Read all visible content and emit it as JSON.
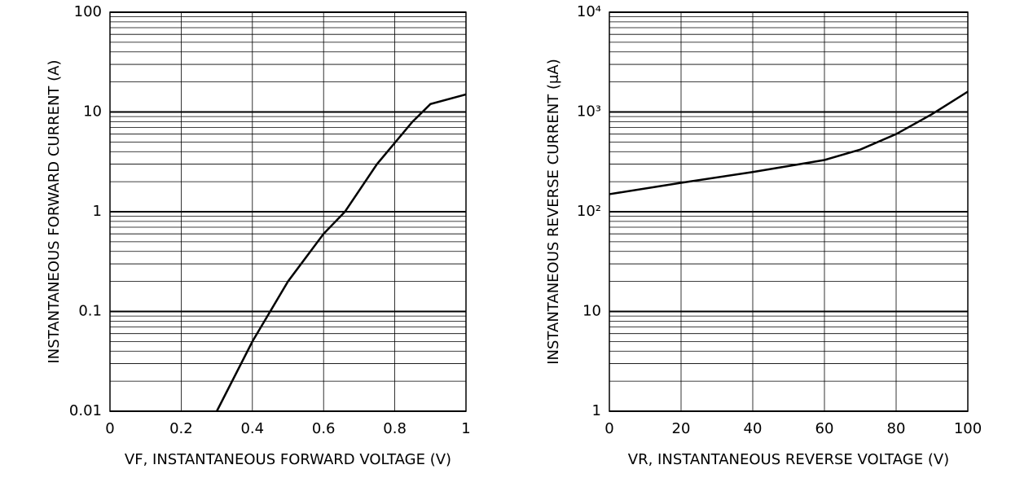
{
  "chart_data": [
    {
      "type": "line",
      "y_label": "INSTANTANEOUS FORWARD CURRENT (A)",
      "x_label": "VF, INSTANTANEOUS FORWARD VOLTAGE (V)",
      "x": [
        0.3,
        0.4,
        0.5,
        0.6,
        0.66,
        0.75,
        0.85,
        0.9,
        1.0
      ],
      "values": [
        0.01,
        0.05,
        0.2,
        0.6,
        1,
        3,
        8,
        12,
        15
      ],
      "color": "#000000",
      "xlim": [
        0,
        1
      ],
      "xticks": [
        0,
        0.2,
        0.4,
        0.6,
        0.8,
        1
      ],
      "ylim": [
        0.01,
        100
      ],
      "yticks": [
        0.01,
        0.1,
        1,
        10,
        100
      ],
      "log_y": true,
      "grid": true
    },
    {
      "type": "line",
      "y_label": "INSTANTANEOUS REVERSE CURRENT (μA)",
      "x_label": "VR, INSTANTANEOUS REVERSE VOLTAGE (V)",
      "x": [
        0,
        20,
        40,
        60,
        70,
        80,
        90,
        100
      ],
      "values": [
        150,
        195,
        250,
        330,
        420,
        600,
        950,
        1600
      ],
      "color": "#000000",
      "xlim": [
        0,
        100
      ],
      "xticks": [
        0,
        20,
        40,
        60,
        80,
        100
      ],
      "ylim": [
        1,
        10000
      ],
      "yticks": [
        1,
        10,
        {
          "value": 100,
          "label": "10²"
        },
        {
          "value": 1000,
          "label": "10³"
        },
        {
          "value": 10000,
          "label": "10⁴"
        }
      ],
      "log_y": true,
      "grid": true
    }
  ]
}
